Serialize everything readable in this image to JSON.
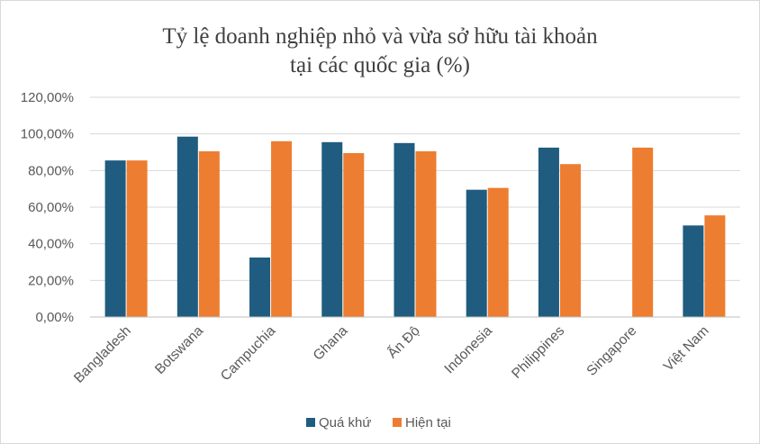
{
  "chart_data": {
    "type": "bar",
    "title_lines": [
      "Tỷ lệ doanh nghiệp nhỏ và vừa sở hữu tài khoản",
      "tại các quốc gia (%)"
    ],
    "categories": [
      "Bangladesh",
      "Botswana",
      "Campuchia",
      "Ghana",
      "Ấn Độ",
      "Indonesia",
      "Philippines",
      "Singapore",
      "Việt Nam"
    ],
    "series": [
      {
        "name": "Quá khứ",
        "color": "#1f5c80",
        "values": [
          85.5,
          98.5,
          32.5,
          95.5,
          95.0,
          69.5,
          92.5,
          null,
          50.0
        ]
      },
      {
        "name": "Hiện tại",
        "color": "#ed7d31",
        "values": [
          85.5,
          90.5,
          96.0,
          89.5,
          90.5,
          70.5,
          83.5,
          92.5,
          55.5
        ]
      }
    ],
    "y_ticks": [
      "0,00%",
      "20,00%",
      "40,00%",
      "60,00%",
      "80,00%",
      "100,00%",
      "120,00%"
    ],
    "ylim": [
      0,
      120
    ],
    "grid": true,
    "legend_position": "bottom"
  }
}
